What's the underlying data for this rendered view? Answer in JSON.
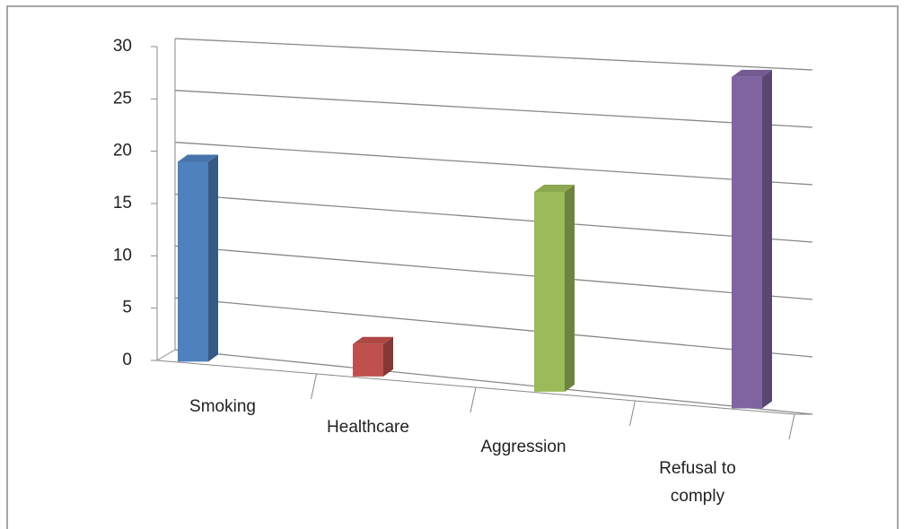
{
  "chart_data": {
    "type": "bar3d",
    "categories": [
      "Smoking",
      "Healthcare",
      "Aggression",
      "Refusal to comply"
    ],
    "values": [
      19,
      3,
      18,
      29
    ],
    "colors": [
      "#4f81bd",
      "#c0504d",
      "#9bbb59",
      "#8064a2"
    ],
    "ylim": [
      0,
      30
    ],
    "yticks": [
      0,
      5,
      10,
      15,
      20,
      25,
      30
    ],
    "grid": true
  }
}
